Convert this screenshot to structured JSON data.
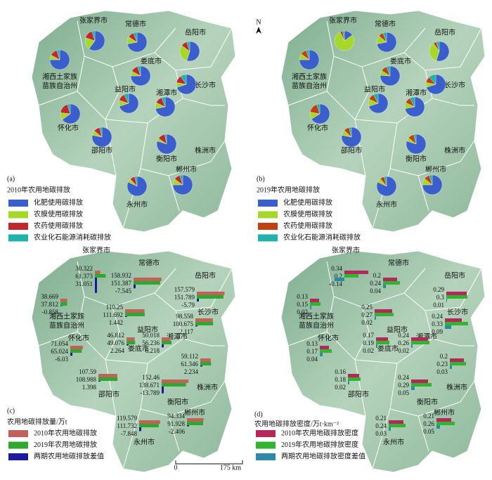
{
  "panels": [
    {
      "label": "(a)",
      "legend_title": "2010年农用地碳排放",
      "legend": [
        "化肥使用碳排放",
        "农膜使用碳排放",
        "农药使用碳排放",
        "农业化石能源消耗碳排放"
      ],
      "colors": [
        "#3a5fcd",
        "#a6d82a",
        "#c0282e",
        "#20b2aa"
      ],
      "cities": [
        {
          "name": [
            "张家界市"
          ],
          "values": [
            60,
            20,
            15,
            5
          ]
        },
        {
          "name": [
            "常德市"
          ],
          "values": [
            72,
            12,
            10,
            6
          ]
        },
        {
          "name": [
            "岳阳市"
          ],
          "values": [
            55,
            30,
            10,
            5
          ]
        },
        {
          "name": [
            "湘西土家族",
            "苗族自治州"
          ],
          "values": [
            75,
            8,
            12,
            5
          ]
        },
        {
          "name": [
            "娄底市"
          ],
          "values": [
            75,
            8,
            12,
            5
          ]
        },
        {
          "name": [
            "益阳市"
          ],
          "values": [
            70,
            10,
            12,
            8
          ]
        },
        {
          "name": [
            "湘潭市"
          ],
          "values": [
            72,
            10,
            12,
            6
          ]
        },
        {
          "name": [
            "长沙市"
          ],
          "values": [
            70,
            8,
            12,
            10
          ]
        },
        {
          "name": [
            "怀化市"
          ],
          "values": [
            65,
            12,
            18,
            5
          ]
        },
        {
          "name": [
            "邵阳市"
          ],
          "values": [
            78,
            8,
            10,
            4
          ]
        },
        {
          "name": [
            "衡阳市"
          ],
          "values": [
            80,
            5,
            12,
            3
          ]
        },
        {
          "name": [
            "株洲市"
          ]
        },
        {
          "name": [
            "郴州市"
          ],
          "values": [
            75,
            10,
            10,
            5
          ]
        },
        {
          "name": [
            "永州市"
          ],
          "values": [
            82,
            6,
            8,
            4
          ]
        }
      ]
    },
    {
      "label": "(b)",
      "legend_title": "2019年农用地碳排放",
      "north": "N",
      "legend": [
        "化肥使用碳排放",
        "农膜使用碳排放",
        "农药使用碳排放",
        "农业化石能源消耗碳排放"
      ],
      "colors": [
        "#3a5fcd",
        "#a6d82a",
        "#c0400f",
        "#20b2aa"
      ],
      "cities": [
        {
          "name": [
            "张家界市"
          ],
          "values": [
            15,
            78,
            4,
            3
          ]
        },
        {
          "name": [
            "常德市"
          ],
          "values": [
            72,
            14,
            8,
            6
          ]
        },
        {
          "name": [
            "岳阳市"
          ],
          "values": [
            55,
            35,
            5,
            5
          ]
        },
        {
          "name": [
            "湘西土家族",
            "苗族自治州"
          ],
          "values": [
            75,
            10,
            10,
            5
          ]
        },
        {
          "name": [
            "娄底市"
          ],
          "values": [
            76,
            8,
            10,
            6
          ]
        },
        {
          "name": [
            "益阳市"
          ],
          "values": [
            70,
            12,
            10,
            8
          ]
        },
        {
          "name": [
            "湘潭市"
          ],
          "values": [
            72,
            10,
            10,
            8
          ]
        },
        {
          "name": [
            "长沙市"
          ],
          "values": [
            70,
            8,
            10,
            12
          ]
        },
        {
          "name": [
            "怀化市"
          ],
          "values": [
            66,
            12,
            17,
            5
          ]
        },
        {
          "name": [
            "邵阳市"
          ],
          "values": [
            78,
            9,
            9,
            4
          ]
        },
        {
          "name": [
            "衡阳市"
          ],
          "values": [
            80,
            6,
            10,
            4
          ]
        },
        {
          "name": [
            "株洲市"
          ]
        },
        {
          "name": [
            "郴州市"
          ],
          "values": [
            75,
            11,
            9,
            5
          ]
        },
        {
          "name": [
            "永州市"
          ],
          "values": [
            82,
            7,
            7,
            4
          ]
        }
      ]
    },
    {
      "label": "(c)",
      "legend_title": "农用地碳排放量/万t",
      "legend": [
        "2010年农用地碳排放",
        "2019年农用地碳排放",
        "两期农用地碳排放差值"
      ],
      "colors": [
        "#c0625a",
        "#2fa82f",
        "#1a1aa0"
      ],
      "scale": [
        "0",
        "175 km"
      ],
      "cities": [
        {
          "name": [
            "张家界市"
          ],
          "values": [
            30.322,
            61.373,
            31.051
          ]
        },
        {
          "name": [
            "常德市"
          ],
          "values": [
            158.932,
            151.387,
            -7.545
          ]
        },
        {
          "name": [
            "岳阳市"
          ],
          "values": [
            157.579,
            151.789,
            -5.79
          ]
        },
        {
          "name": [
            "湘西土家族",
            "苗族自治州"
          ],
          "values": [
            38.669,
            37.812,
            -0.858
          ]
        },
        {
          "name": [
            "娄底市"
          ],
          "values": [
            46.812,
            49.076,
            2.264
          ]
        },
        {
          "name": [
            "益阳市"
          ],
          "values": [
            110.25,
            111.692,
            1.442
          ]
        },
        {
          "name": [
            "湘潭市"
          ],
          "values": [
            50.018,
            56.236,
            6.218
          ]
        },
        {
          "name": [
            "长沙市"
          ],
          "values": [
            98.558,
            100.675,
            2.117
          ]
        },
        {
          "name": [
            "怀化市"
          ],
          "values": [
            71.054,
            65.024,
            -6.03
          ]
        },
        {
          "name": [
            "邵阳市"
          ],
          "values": [
            107.59,
            108.988,
            1.398
          ]
        },
        {
          "name": [
            "衡阳市"
          ],
          "values": [
            152.46,
            138.671,
            -13.789
          ]
        },
        {
          "name": [
            "株洲市"
          ],
          "values": [
            59.112,
            61.346,
            2.234
          ]
        },
        {
          "name": [
            "郴州市"
          ],
          "values": [
            94.334,
            91.928,
            -2.406
          ]
        },
        {
          "name": [
            "永州市"
          ],
          "values": [
            119.579,
            111.732,
            -7.848
          ]
        }
      ]
    },
    {
      "label": "(d)",
      "legend_title": "农用地碳排放密度/万t·km⁻²",
      "legend": [
        "2010年农用地碳排放密度",
        "2019年农用地碳排放密度",
        "两期农用地碳排放密度差值"
      ],
      "colors": [
        "#b5265a",
        "#32b332",
        "#2a8aa8"
      ],
      "cities": [
        {
          "name": [
            "张家界市"
          ],
          "values": [
            0.34,
            0.2,
            -0.14
          ]
        },
        {
          "name": [
            "常德市"
          ],
          "values": [
            0.2,
            0.24,
            0.04
          ]
        },
        {
          "name": [
            "岳阳市"
          ],
          "values": [
            0.29,
            0.3,
            0.01
          ]
        },
        {
          "name": [
            "湘西土家族",
            "苗族自治州"
          ],
          "values": [
            0.13,
            0.15,
            0.02
          ]
        },
        {
          "name": [
            "娄底市"
          ],
          "values": [
            0.17,
            0.19,
            0.02
          ]
        },
        {
          "name": [
            "益阳市"
          ],
          "values": [
            0.25,
            0.27,
            0.02
          ]
        },
        {
          "name": [
            "湘潭市"
          ],
          "values": [
            0.24,
            0.26,
            0.02
          ]
        },
        {
          "name": [
            "长沙市"
          ],
          "values": [
            0.24,
            0.33,
            0.09
          ]
        },
        {
          "name": [
            "怀化市"
          ],
          "values": [
            0.13,
            0.17,
            0.04
          ]
        },
        {
          "name": [
            "邵阳市"
          ],
          "values": [
            0.16,
            0.18,
            0.02
          ]
        },
        {
          "name": [
            "衡阳市"
          ],
          "values": [
            0.24,
            0.29,
            0.05
          ]
        },
        {
          "name": [
            "株洲市"
          ],
          "values": [
            0.2,
            0.23,
            0.03
          ]
        },
        {
          "name": [
            "郴州市"
          ],
          "values": [
            0.21,
            0.26,
            0.05
          ]
        },
        {
          "name": [
            "永州市"
          ],
          "values": [
            0.21,
            0.24,
            0.03
          ]
        }
      ]
    }
  ]
}
